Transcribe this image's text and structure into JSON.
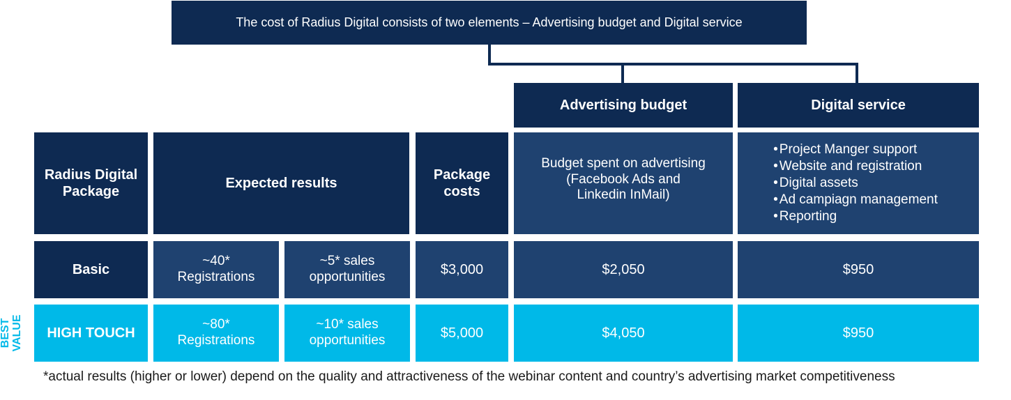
{
  "top_banner": "The cost of Radius Digital consists of two elements – Advertising budget and Digital service",
  "elements": {
    "advertising": {
      "title": "Advertising budget",
      "description": "Budget spent on advertising\n(Facebook Ads and\nLinkedin InMail)"
    },
    "digital": {
      "title": "Digital service",
      "items": [
        "Project Manger support",
        "Website and registration",
        "Digital assets",
        "Ad campiagn management",
        "Reporting"
      ]
    }
  },
  "headers": {
    "package": "Radius Digital\nPackage",
    "expected": "Expected results",
    "costs": "Package\ncosts"
  },
  "rows": [
    {
      "name": "Basic",
      "registrations": "~40*\nRegistrations",
      "opportunities": "~5* sales\nopportunities",
      "package_cost": "$3,000",
      "advertising": "$2,050",
      "digital": "$950"
    },
    {
      "name": "HIGH TOUCH",
      "registrations": "~80*\nRegistrations",
      "opportunities": "~10* sales\nopportunities",
      "package_cost": "$5,000",
      "advertising": "$4,050",
      "digital": "$950"
    }
  ],
  "best_value_label": "BEST\nVALUE",
  "footnote": "*actual results (higher or lower) depend on the quality and attractiveness of the webinar content and country’s advertising market competitiveness",
  "colors": {
    "navy": "#0e2a52",
    "mid_blue": "#1f4270",
    "cyan": "#00b9e8"
  }
}
